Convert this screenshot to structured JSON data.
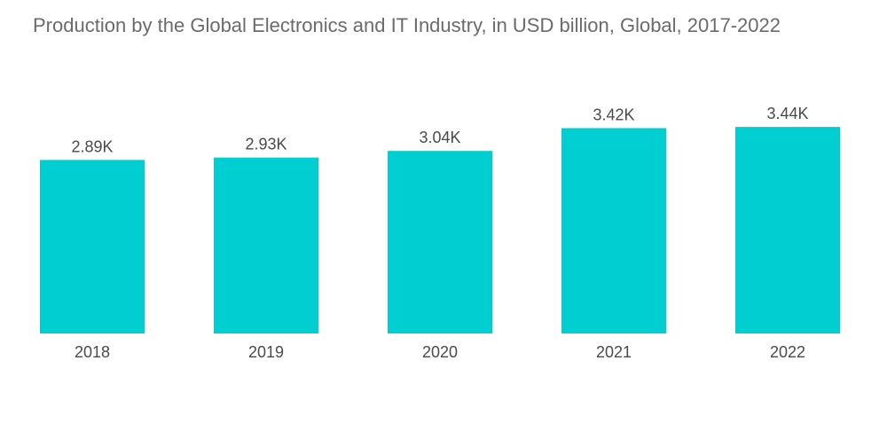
{
  "chart_data": {
    "type": "bar",
    "title": "Production by the Global Electronics and IT Industry, in USD billion, Global, 2017-2022",
    "xlabel": "",
    "ylabel": "",
    "categories": [
      "2018",
      "2019",
      "2020",
      "2021",
      "2022"
    ],
    "values": [
      2890,
      2930,
      3040,
      3420,
      3440
    ],
    "data_labels": [
      "2.89K",
      "2.93K",
      "3.04K",
      "3.42K",
      "3.44K"
    ],
    "ylim": [
      0,
      3700
    ],
    "grid": false,
    "legend": "none",
    "bar_color": "#00CED1"
  }
}
